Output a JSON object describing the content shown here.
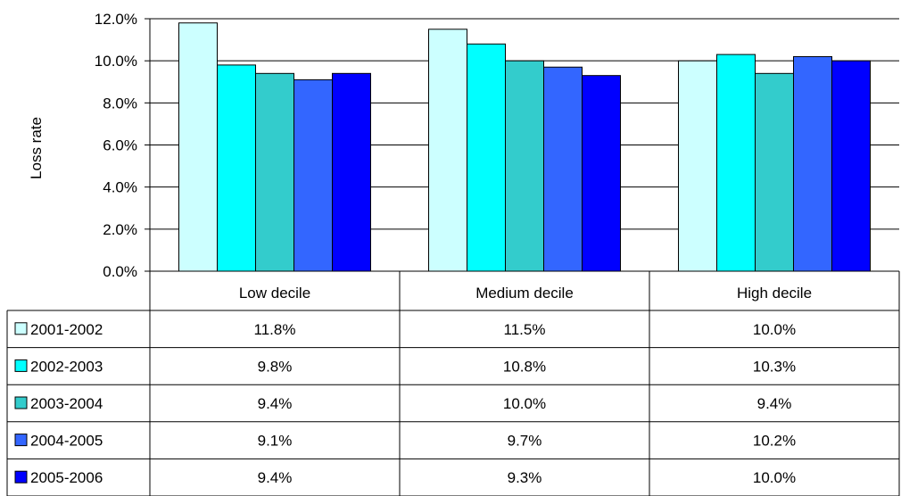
{
  "chart_data": {
    "type": "bar",
    "ylabel": "Loss rate",
    "ylim": [
      0,
      12
    ],
    "yticks": [
      "0.0%",
      "2.0%",
      "4.0%",
      "6.0%",
      "8.0%",
      "10.0%",
      "12.0%"
    ],
    "categories": [
      "Low decile",
      "Medium decile",
      "High decile"
    ],
    "series": [
      {
        "name": "2001-2002",
        "color": "#ccffff",
        "values": [
          11.8,
          11.5,
          10.0
        ],
        "labels": [
          "11.8%",
          "11.5%",
          "10.0%"
        ]
      },
      {
        "name": "2002-2003",
        "color": "#00ffff",
        "values": [
          9.8,
          10.8,
          10.3
        ],
        "labels": [
          "9.8%",
          "10.8%",
          "10.3%"
        ]
      },
      {
        "name": "2003-2004",
        "color": "#33cccc",
        "values": [
          9.4,
          10.0,
          9.4
        ],
        "labels": [
          "9.4%",
          "10.0%",
          "9.4%"
        ]
      },
      {
        "name": "2004-2005",
        "color": "#3366ff",
        "values": [
          9.1,
          9.7,
          10.2
        ],
        "labels": [
          "9.1%",
          "9.7%",
          "10.2%"
        ]
      },
      {
        "name": "2005-2006",
        "color": "#0000ff",
        "values": [
          9.4,
          9.3,
          10.0
        ],
        "labels": [
          "9.4%",
          "9.3%",
          "10.0%"
        ]
      }
    ],
    "grid": true,
    "legend": "data-table"
  }
}
